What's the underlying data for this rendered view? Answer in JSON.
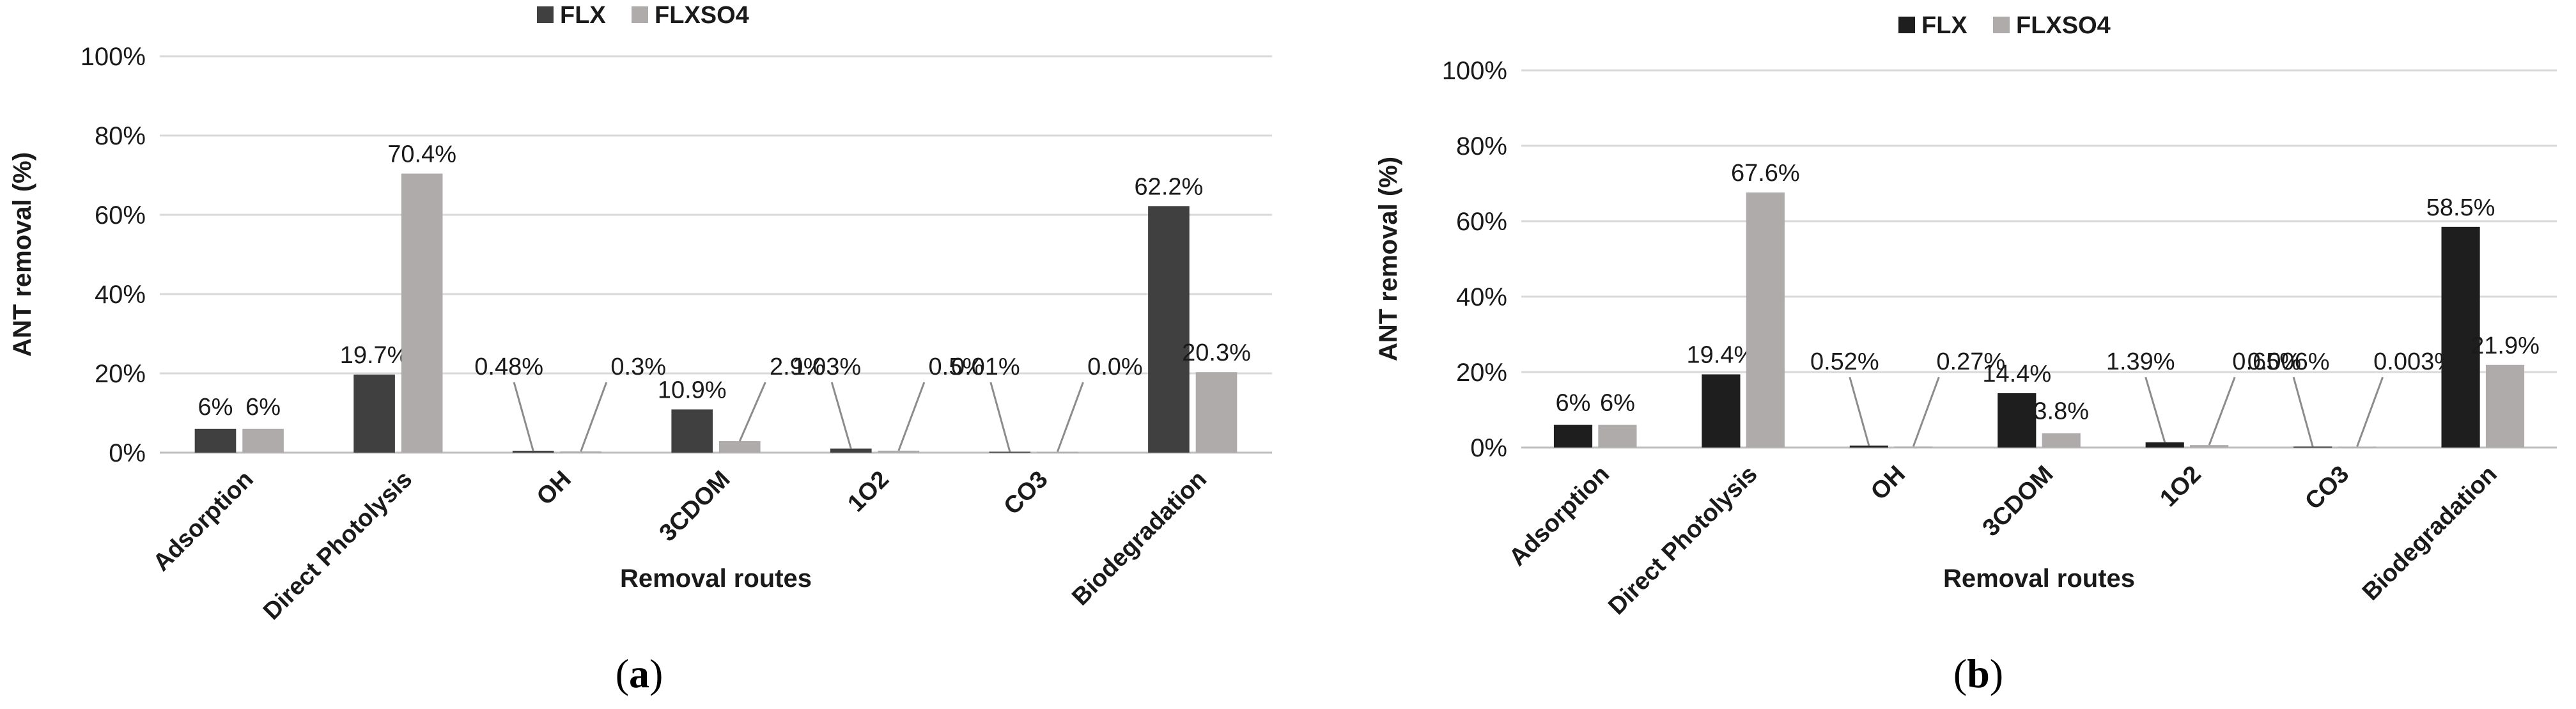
{
  "chart_data": [
    {
      "type": "bar",
      "panel_label": "a",
      "xlabel": "Removal routes",
      "ylabel": "ANT removal (%)",
      "ylim": [
        0,
        100
      ],
      "yticks": [
        "0%",
        "20%",
        "40%",
        "60%",
        "80%",
        "100%"
      ],
      "grid": true,
      "legend_position": "top",
      "categories": [
        "Adsorption",
        "Direct Photolysis",
        "OH",
        "3CDOM",
        "1O2",
        "CO3",
        "Biodegradation"
      ],
      "series": [
        {
          "name": "FLX",
          "color": "#404040",
          "values": [
            6,
            19.7,
            0.48,
            10.9,
            1.03,
            0.01,
            62.2
          ],
          "labels": [
            "6%",
            "19.7%",
            "0.48%",
            "10.9%",
            "1.03%",
            "0.01%",
            "62.2%"
          ]
        },
        {
          "name": "FLXSO4",
          "color": "#afabab",
          "values": [
            6,
            70.4,
            0.3,
            2.9,
            0.5,
            0.0,
            20.3
          ],
          "labels": [
            "6%",
            "70.4%",
            "0.3%",
            "2.9%",
            "0.5%",
            "0.0%",
            "20.3%"
          ]
        }
      ]
    },
    {
      "type": "bar",
      "panel_label": "b",
      "xlabel": "Removal routes",
      "ylabel": "ANT removal (%)",
      "ylim": [
        0,
        100
      ],
      "yticks": [
        "0%",
        "20%",
        "40%",
        "60%",
        "80%",
        "100%"
      ],
      "grid": true,
      "legend_position": "top",
      "categories": [
        "Adsorption",
        "Direct Photolysis",
        "OH",
        "3CDOM",
        "1O2",
        "CO3",
        "Biodegradation"
      ],
      "series": [
        {
          "name": "FLX",
          "color": "#1e1e1e",
          "values": [
            6,
            19.4,
            0.52,
            14.4,
            1.39,
            0.006,
            58.5
          ],
          "labels": [
            "6%",
            "19.4%",
            "0.52%",
            "14.4%",
            "1.39%",
            "0.006%",
            "58.5%"
          ]
        },
        {
          "name": "FLXSO4",
          "color": "#afabab",
          "values": [
            6,
            67.6,
            0.27,
            3.8,
            0.65,
            0.003,
            21.9
          ],
          "labels": [
            "6%",
            "67.6%",
            "0.27%",
            "3.8%",
            "0.65%",
            "0.003%",
            "21.9%"
          ]
        }
      ]
    }
  ]
}
